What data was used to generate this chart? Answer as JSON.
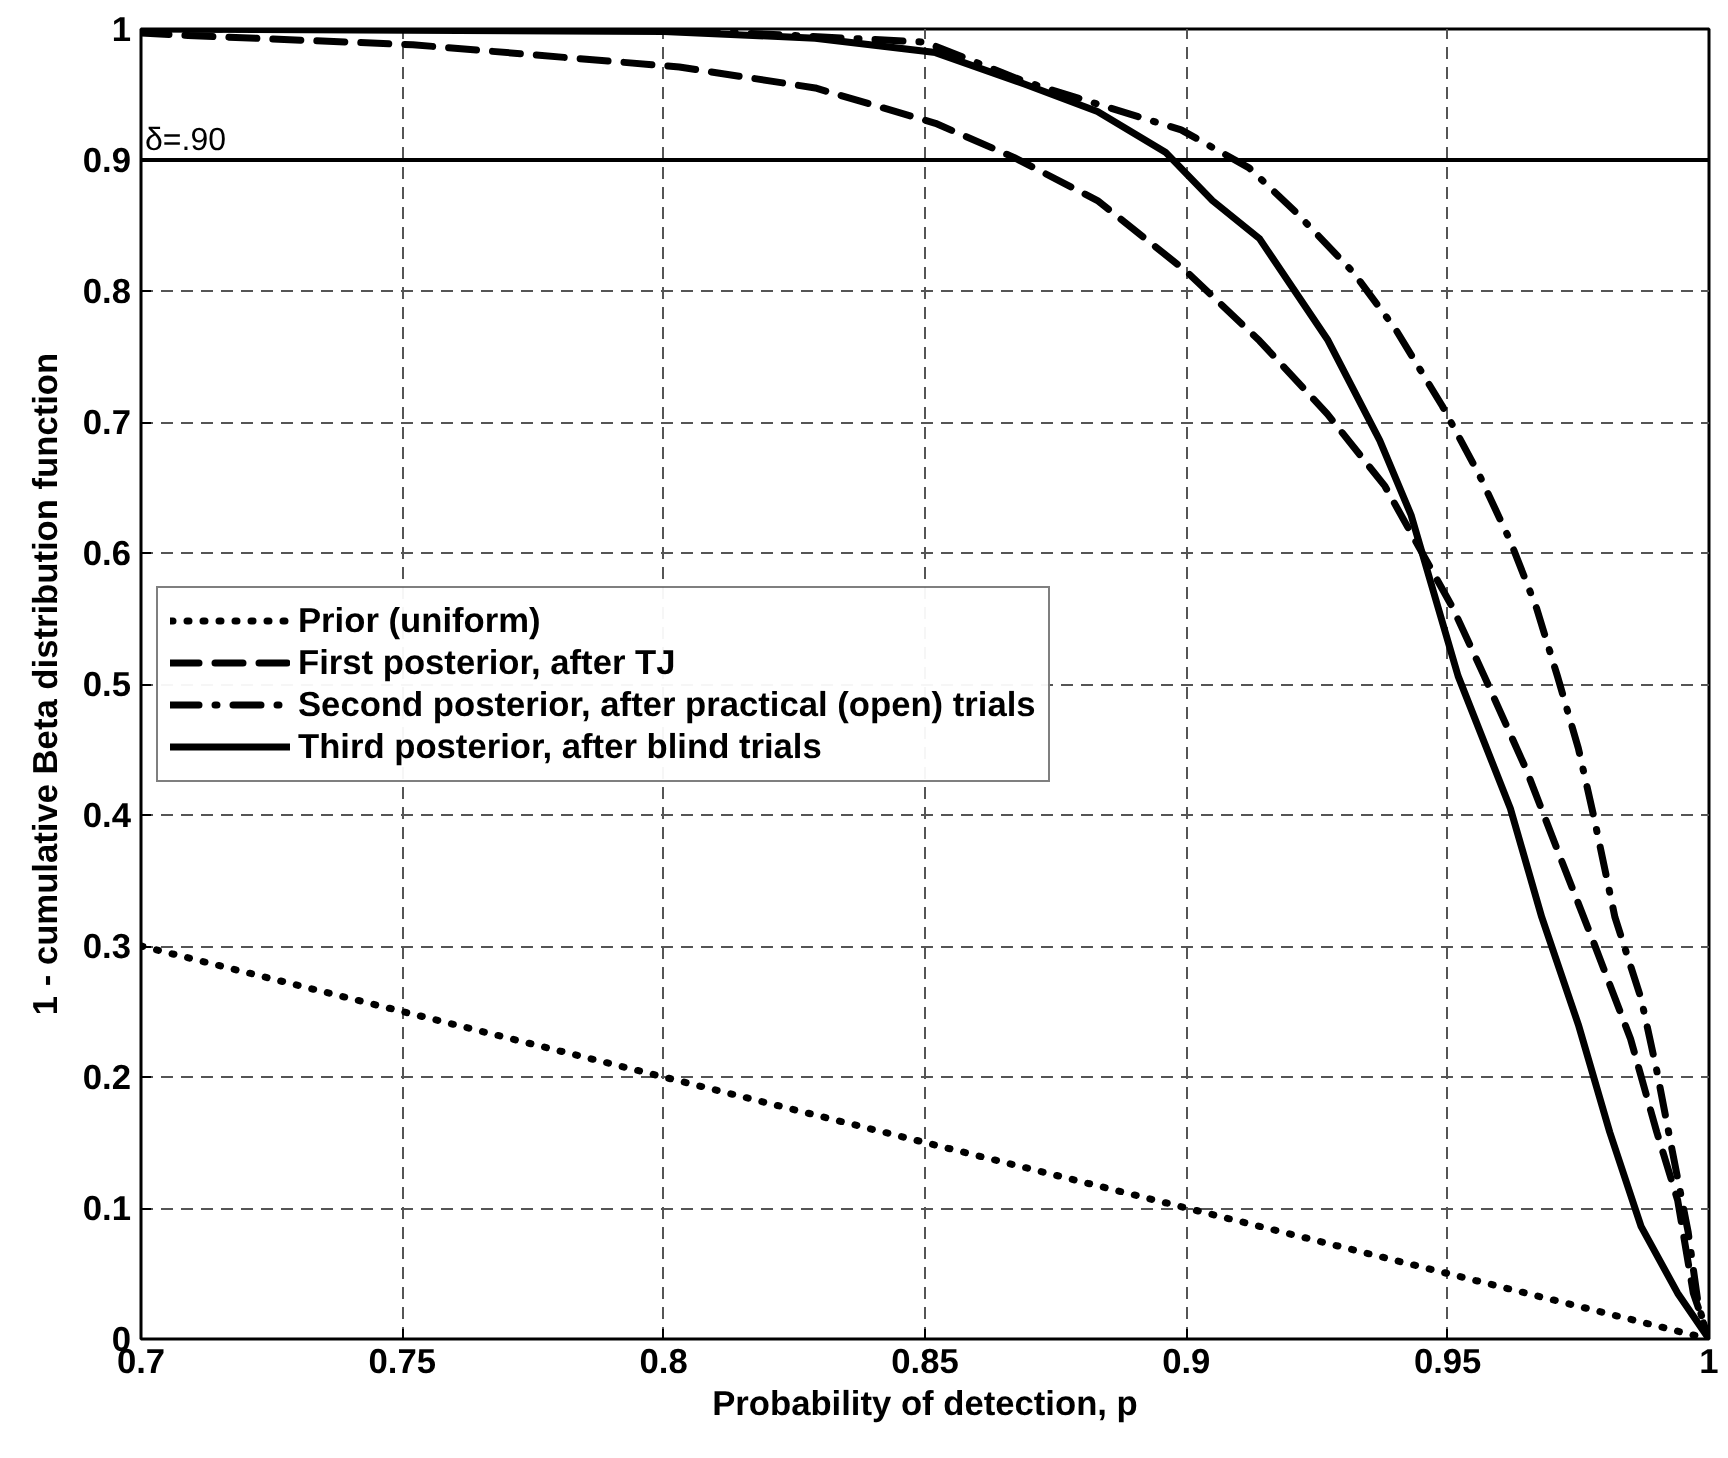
{
  "chart_data": {
    "type": "line",
    "xlabel": "Probability of detection, p",
    "ylabel": "1 - cumulative Beta distribution function",
    "xlim": [
      0.7,
      1
    ],
    "ylim": [
      0,
      1
    ],
    "xticks": [
      0.7,
      0.75,
      0.8,
      0.85,
      0.9,
      0.95,
      1
    ],
    "yticks": [
      0,
      0.1,
      0.2,
      0.3,
      0.4,
      0.5,
      0.6,
      0.7,
      0.8,
      0.9,
      1
    ],
    "grid": true,
    "legend": "left",
    "marker": "none",
    "ref_lines": [
      {
        "axis": "y",
        "value": 0.9,
        "label": "δ=.90",
        "color": "#000000",
        "line_style": "solid"
      }
    ],
    "series": [
      {
        "name": "Prior (uniform)",
        "color": "#000000",
        "line_style": "dotted",
        "x": [
          0.7,
          1
        ],
        "values": [
          0.3,
          0
        ]
      },
      {
        "name": "First posterior, after TJ",
        "color": "#000000",
        "line_style": "dashed",
        "x": [
          0.7,
          0.709,
          0.752,
          0.803,
          0.829,
          0.852,
          0.867,
          0.883,
          0.9,
          0.914,
          0.927,
          0.938,
          0.951,
          0.957,
          0.965,
          0.972,
          0.978,
          0.985,
          0.99,
          0.994,
          0.997,
          1
        ],
        "values": [
          0.997,
          0.995,
          0.988,
          0.971,
          0.955,
          0.928,
          0.902,
          0.869,
          0.815,
          0.762,
          0.706,
          0.651,
          0.558,
          0.506,
          0.435,
          0.363,
          0.302,
          0.229,
          0.158,
          0.106,
          0.035,
          0
        ]
      },
      {
        "name": "Second posterior, after practical (open) trials",
        "color": "#000000",
        "line_style": "dashdot",
        "x": [
          0.71,
          0.8,
          0.85,
          0.869,
          0.899,
          0.912,
          0.921,
          0.932,
          0.94,
          0.949,
          0.956,
          0.962,
          0.967,
          0.971,
          0.975,
          0.978,
          0.982,
          0.987,
          0.99,
          0.993,
          0.996,
          0.998,
          1
        ],
        "values": [
          1,
          1,
          0.99,
          0.96,
          0.923,
          0.894,
          0.86,
          0.814,
          0.771,
          0.712,
          0.66,
          0.609,
          0.558,
          0.506,
          0.451,
          0.398,
          0.322,
          0.26,
          0.205,
          0.143,
          0.082,
          0.025,
          0
        ]
      },
      {
        "name": "Third posterior, after blind trials",
        "color": "#000000",
        "line_style": "solid",
        "x": [
          0.7,
          0.8,
          0.829,
          0.852,
          0.869,
          0.883,
          0.896,
          0.905,
          0.914,
          0.927,
          0.937,
          0.943,
          0.952,
          0.962,
          0.968,
          0.975,
          0.981,
          0.987,
          0.994,
          1
        ],
        "values": [
          1,
          0.998,
          0.993,
          0.982,
          0.958,
          0.937,
          0.906,
          0.869,
          0.84,
          0.763,
          0.686,
          0.629,
          0.506,
          0.405,
          0.322,
          0.24,
          0.158,
          0.086,
          0.035,
          0
        ]
      }
    ]
  }
}
